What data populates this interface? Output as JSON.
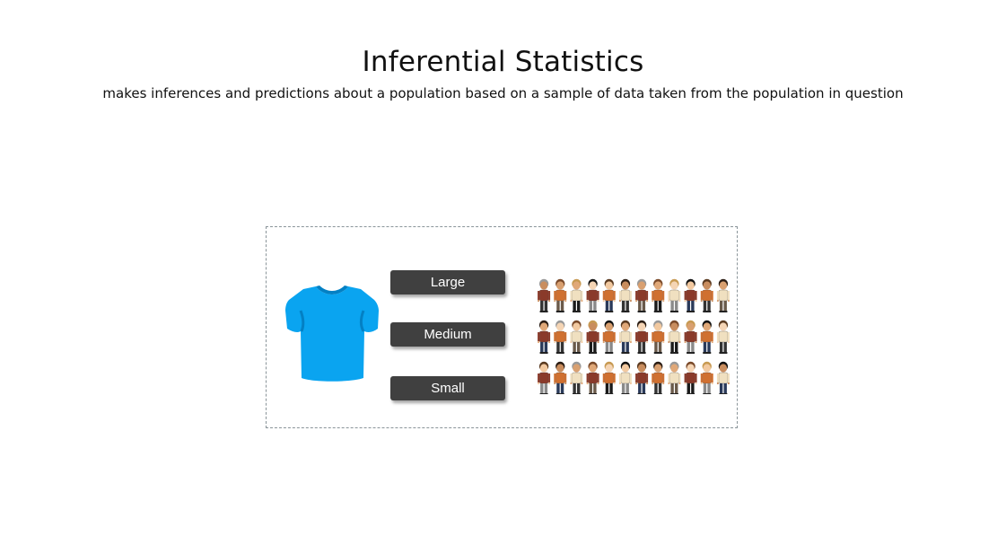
{
  "header": {
    "title": "Inferential Statistics",
    "subtitle": "makes inferences and predictions about a population based on a sample of data taken from the population in question"
  },
  "figure": {
    "shirt_color": "#0aa4f0",
    "size_labels": [
      "Large",
      "Medium",
      "Small"
    ],
    "people_rows": 3,
    "people_per_row": 12
  }
}
